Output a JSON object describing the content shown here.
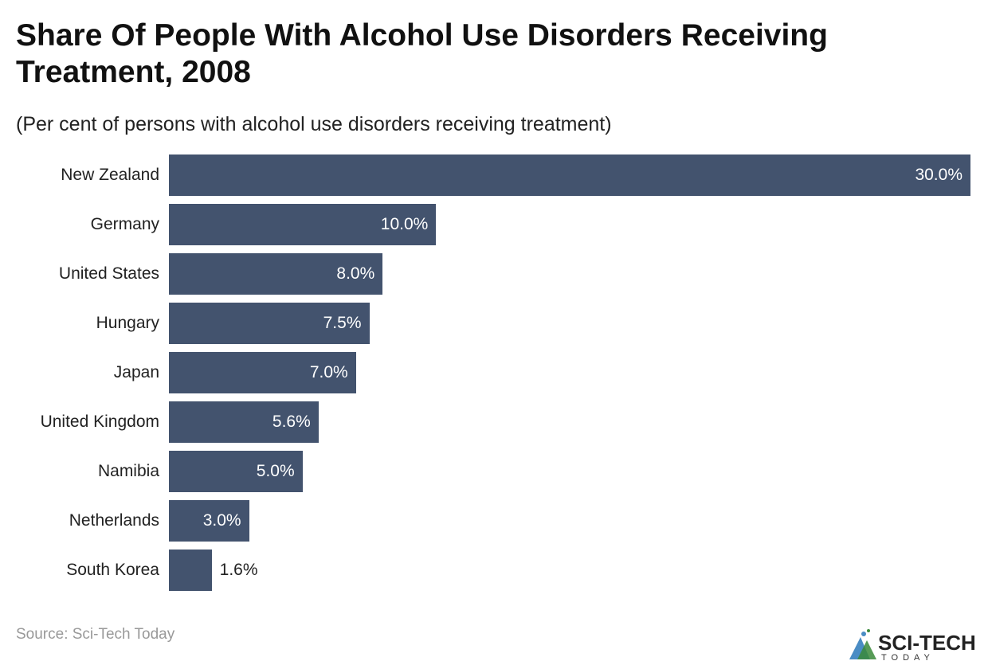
{
  "chart_data": {
    "type": "bar",
    "orientation": "horizontal",
    "title": "Share Of People With Alcohol Use Disorders Receiving Treatment, 2008",
    "subtitle": "(Per cent of persons with alcohol use disorders receiving treatment)",
    "categories": [
      "New Zealand",
      "Germany",
      "United States",
      "Hungary",
      "Japan",
      "United Kingdom",
      "Namibia",
      "Netherlands",
      "South Korea"
    ],
    "values": [
      30.0,
      10.0,
      8.0,
      7.5,
      7.0,
      5.6,
      5.0,
      3.0,
      1.6
    ],
    "data_labels": [
      "30.0%",
      "10.0%",
      "8.0%",
      "7.5%",
      "7.0%",
      "5.6%",
      "5.0%",
      "3.0%",
      "1.6%"
    ],
    "xlim": [
      0,
      30
    ],
    "grid": false,
    "bar_color": "#43536e"
  },
  "source": "Source: Sci-Tech Today",
  "logo": {
    "text": "SCI-TECH",
    "subtext": "TODAY"
  }
}
